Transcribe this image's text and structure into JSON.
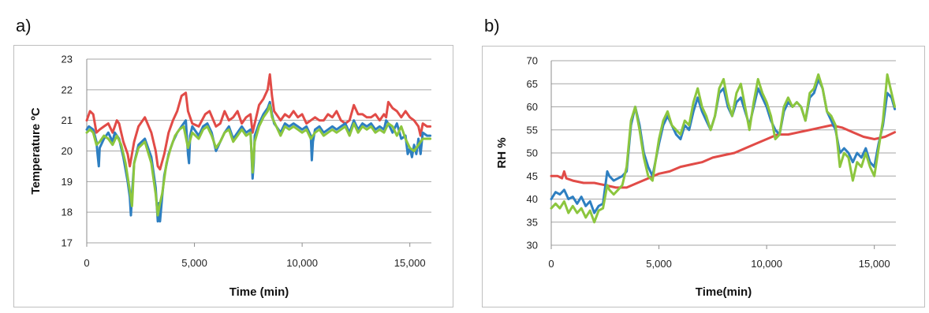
{
  "panels": {
    "a": {
      "letter": "a)"
    },
    "b": {
      "letter": "b)"
    }
  },
  "colors": {
    "blue": "#2e7fc1",
    "green": "#8cc63e",
    "red": "#e14b47",
    "grid": "#a6a6a6",
    "axis": "#8c8c8c"
  },
  "chart_data": [
    {
      "type": "line",
      "panel": "a",
      "xlabel": "Time (min)",
      "ylabel": "Temperature ºC",
      "xlim": [
        0,
        16000
      ],
      "ylim": [
        17,
        23
      ],
      "xticks": [
        0,
        5000,
        10000,
        15000
      ],
      "xtick_labels": [
        "0",
        "5,000",
        "10,000",
        "15,000"
      ],
      "yticks": [
        17,
        18,
        19,
        20,
        21,
        22,
        23
      ],
      "ytick_labels": [
        "17",
        "18",
        "19",
        "20",
        "21",
        "22",
        "23"
      ],
      "grid": "horizontal",
      "series": [
        {
          "color": "#e14b47",
          "x": [
            0,
            150,
            300,
            450,
            600,
            800,
            1000,
            1200,
            1400,
            1500,
            1700,
            1900,
            2000,
            2200,
            2400,
            2700,
            3000,
            3200,
            3300,
            3400,
            3600,
            3800,
            4000,
            4200,
            4400,
            4600,
            4700,
            4900,
            5200,
            5500,
            5700,
            6000,
            6200,
            6400,
            6600,
            6800,
            7000,
            7200,
            7400,
            7600,
            7700,
            7800,
            8000,
            8200,
            8400,
            8500,
            8600,
            8700,
            8800,
            9000,
            9200,
            9400,
            9600,
            9800,
            10000,
            10200,
            10400,
            10600,
            10800,
            11000,
            11200,
            11400,
            11600,
            11800,
            12000,
            12200,
            12400,
            12600,
            12800,
            13000,
            13200,
            13400,
            13600,
            13800,
            13900,
            14000,
            14200,
            14400,
            14600,
            14800,
            15000,
            15200,
            15400,
            15500,
            15600,
            15800,
            15950
          ],
          "y": [
            21.0,
            21.3,
            21.2,
            20.6,
            20.7,
            20.8,
            20.9,
            20.6,
            21.0,
            20.9,
            20.3,
            19.9,
            19.5,
            20.3,
            20.8,
            21.1,
            20.6,
            20.0,
            19.5,
            19.4,
            19.9,
            20.6,
            21.0,
            21.3,
            21.8,
            21.9,
            21.3,
            20.9,
            20.8,
            21.2,
            21.3,
            20.8,
            20.9,
            21.3,
            21.0,
            21.1,
            21.3,
            20.9,
            21.1,
            21.2,
            20.6,
            20.9,
            21.5,
            21.7,
            22.0,
            22.5,
            21.8,
            21.3,
            21.2,
            21.0,
            21.2,
            21.1,
            21.3,
            21.1,
            21.2,
            20.9,
            21.0,
            21.1,
            21.0,
            21.0,
            21.2,
            21.1,
            21.3,
            21.0,
            20.9,
            21.0,
            21.5,
            21.2,
            21.2,
            21.1,
            21.1,
            21.2,
            21.0,
            21.2,
            21.1,
            21.6,
            21.4,
            21.3,
            21.1,
            21.3,
            21.1,
            21.0,
            20.8,
            20.5,
            20.9,
            20.8,
            20.8
          ]
        },
        {
          "color": "#2e7fc1",
          "x": [
            0,
            100,
            300,
            450,
            500,
            560,
            600,
            800,
            1000,
            1200,
            1300,
            1500,
            1700,
            1900,
            2000,
            2050,
            2100,
            2200,
            2400,
            2700,
            3000,
            3200,
            3300,
            3350,
            3400,
            3500,
            3600,
            3800,
            4000,
            4200,
            4400,
            4600,
            4700,
            4750,
            4800,
            4900,
            5200,
            5400,
            5600,
            5800,
            6000,
            6200,
            6400,
            6600,
            6800,
            7000,
            7200,
            7400,
            7600,
            7700,
            7750,
            7800,
            8000,
            8200,
            8400,
            8500,
            8600,
            8700,
            8800,
            9000,
            9200,
            9400,
            9600,
            9800,
            10000,
            10200,
            10400,
            10450,
            10500,
            10600,
            10800,
            11000,
            11200,
            11400,
            11600,
            11800,
            12000,
            12200,
            12400,
            12600,
            12800,
            13000,
            13200,
            13400,
            13600,
            13800,
            13900,
            14000,
            14200,
            14400,
            14600,
            14800,
            14900,
            15000,
            15100,
            15200,
            15300,
            15400,
            15500,
            15600,
            15800,
            15950
          ],
          "y": [
            20.7,
            20.8,
            20.7,
            20.3,
            19.9,
            19.5,
            20.1,
            20.4,
            20.6,
            20.3,
            20.6,
            20.4,
            19.8,
            19.0,
            18.5,
            17.9,
            18.6,
            19.6,
            20.2,
            20.4,
            19.8,
            18.8,
            17.7,
            18.3,
            17.7,
            18.5,
            19.2,
            19.9,
            20.3,
            20.6,
            20.8,
            21.0,
            19.9,
            19.6,
            20.5,
            20.8,
            20.5,
            20.8,
            20.9,
            20.6,
            20.0,
            20.3,
            20.6,
            20.8,
            20.4,
            20.6,
            20.8,
            20.6,
            20.7,
            19.1,
            19.6,
            20.5,
            20.9,
            21.2,
            21.4,
            21.6,
            21.2,
            20.9,
            20.8,
            20.6,
            20.9,
            20.8,
            20.9,
            20.8,
            20.7,
            20.8,
            20.5,
            19.7,
            20.3,
            20.7,
            20.8,
            20.6,
            20.7,
            20.8,
            20.7,
            20.8,
            20.9,
            20.6,
            21.0,
            20.7,
            20.9,
            20.8,
            20.9,
            20.7,
            20.8,
            20.7,
            21.0,
            20.9,
            20.6,
            20.9,
            20.4,
            20.5,
            19.9,
            20.1,
            19.8,
            20.2,
            19.9,
            20.4,
            19.9,
            20.6,
            20.5,
            20.5
          ]
        },
        {
          "color": "#8cc63e",
          "x": [
            0,
            150,
            300,
            450,
            600,
            800,
            1000,
            1200,
            1400,
            1600,
            1800,
            2000,
            2100,
            2200,
            2400,
            2700,
            3000,
            3200,
            3300,
            3400,
            3500,
            3700,
            3900,
            4100,
            4300,
            4500,
            4700,
            4900,
            5200,
            5400,
            5600,
            5800,
            6000,
            6200,
            6400,
            6600,
            6800,
            7000,
            7200,
            7400,
            7600,
            7700,
            7800,
            8000,
            8200,
            8400,
            8500,
            8600,
            8800,
            9000,
            9200,
            9400,
            9600,
            9800,
            10000,
            10200,
            10400,
            10600,
            10800,
            11000,
            11200,
            11400,
            11600,
            11800,
            12000,
            12200,
            12400,
            12600,
            12800,
            13000,
            13200,
            13400,
            13600,
            13800,
            14000,
            14200,
            14400,
            14600,
            14800,
            15000,
            15200,
            15400,
            15600,
            15800,
            15950
          ],
          "y": [
            20.6,
            20.7,
            20.6,
            20.2,
            20.3,
            20.5,
            20.4,
            20.2,
            20.5,
            20.2,
            19.6,
            18.7,
            18.2,
            19.6,
            20.1,
            20.3,
            19.6,
            18.6,
            17.9,
            18.3,
            18.6,
            19.6,
            20.1,
            20.5,
            20.7,
            20.8,
            20.1,
            20.6,
            20.4,
            20.7,
            20.8,
            20.5,
            20.1,
            20.3,
            20.6,
            20.7,
            20.3,
            20.5,
            20.7,
            20.5,
            20.6,
            19.3,
            20.3,
            20.8,
            21.1,
            21.3,
            21.5,
            21.1,
            20.8,
            20.5,
            20.8,
            20.7,
            20.8,
            20.7,
            20.6,
            20.7,
            20.4,
            20.6,
            20.7,
            20.5,
            20.6,
            20.7,
            20.6,
            20.7,
            20.8,
            20.5,
            20.9,
            20.6,
            20.8,
            20.7,
            20.8,
            20.6,
            20.7,
            20.6,
            20.9,
            20.8,
            20.5,
            20.8,
            20.4,
            20.1,
            20.0,
            20.2,
            20.4,
            20.4,
            20.4
          ]
        }
      ]
    },
    {
      "type": "line",
      "panel": "b",
      "xlabel": "Time(min)",
      "ylabel": "RH %",
      "xlim": [
        0,
        16000
      ],
      "ylim": [
        30,
        70
      ],
      "xticks": [
        0,
        5000,
        10000,
        15000
      ],
      "xtick_labels": [
        "0",
        "5,000",
        "10,000",
        "15,000"
      ],
      "yticks": [
        30,
        35,
        40,
        45,
        50,
        55,
        60,
        65,
        70
      ],
      "ytick_labels": [
        "30",
        "35",
        "40",
        "45",
        "50",
        "55",
        "60",
        "65",
        "70"
      ],
      "grid": "horizontal",
      "series": [
        {
          "color": "#e14b47",
          "x": [
            0,
            300,
            500,
            600,
            700,
            1000,
            1500,
            2000,
            2500,
            3000,
            3500,
            4000,
            4500,
            5000,
            5500,
            6000,
            6500,
            7000,
            7500,
            8000,
            8500,
            9000,
            9500,
            10000,
            10500,
            11000,
            11500,
            12000,
            12500,
            13000,
            13500,
            14000,
            14500,
            15000,
            15500,
            15950
          ],
          "y": [
            45,
            45,
            44.5,
            46,
            44.5,
            44,
            43.5,
            43.5,
            43,
            42.5,
            42.5,
            43.5,
            44.5,
            45.5,
            46,
            47,
            47.5,
            48,
            49,
            49.5,
            50,
            51,
            52,
            53,
            54,
            54,
            54.5,
            55,
            55.5,
            56,
            55.5,
            54.5,
            53.5,
            53,
            53.5,
            54.5
          ]
        },
        {
          "color": "#2e7fc1",
          "x": [
            0,
            200,
            400,
            600,
            800,
            1000,
            1200,
            1400,
            1600,
            1800,
            2000,
            2200,
            2400,
            2600,
            2700,
            2900,
            3100,
            3300,
            3500,
            3700,
            3900,
            4100,
            4300,
            4500,
            4700,
            5000,
            5200,
            5400,
            5600,
            5800,
            6000,
            6200,
            6400,
            6600,
            6800,
            7000,
            7200,
            7400,
            7600,
            7800,
            8000,
            8200,
            8400,
            8600,
            8800,
            9000,
            9200,
            9400,
            9600,
            9800,
            10000,
            10200,
            10400,
            10600,
            10800,
            11000,
            11200,
            11400,
            11600,
            11800,
            12000,
            12200,
            12400,
            12600,
            12800,
            13000,
            13200,
            13400,
            13600,
            13800,
            14000,
            14200,
            14400,
            14600,
            14800,
            15000,
            15200,
            15400,
            15600,
            15800,
            15950
          ],
          "y": [
            40,
            41.5,
            41,
            42,
            40,
            40.5,
            39,
            40.5,
            38.5,
            39.5,
            37,
            38.5,
            39,
            46,
            45,
            44,
            44.5,
            45,
            46,
            56,
            60,
            56,
            50,
            47,
            45,
            52,
            56,
            58,
            56,
            54,
            53,
            56,
            55,
            59,
            62,
            59,
            57,
            55,
            58,
            63,
            64,
            60,
            58,
            61,
            62,
            59,
            56,
            60,
            64,
            62,
            60,
            57,
            55,
            54,
            59,
            61,
            60,
            61,
            60,
            57,
            62,
            63,
            66,
            64,
            59,
            57,
            55,
            50,
            51,
            50,
            48,
            50,
            49,
            51,
            48,
            47,
            52,
            56,
            63,
            62,
            59.5
          ]
        },
        {
          "color": "#8cc63e",
          "x": [
            0,
            200,
            400,
            600,
            800,
            1000,
            1200,
            1400,
            1600,
            1800,
            2000,
            2200,
            2400,
            2600,
            2700,
            2900,
            3100,
            3300,
            3500,
            3700,
            3900,
            4100,
            4300,
            4500,
            4700,
            5000,
            5200,
            5400,
            5600,
            5800,
            6000,
            6200,
            6400,
            6600,
            6800,
            7000,
            7200,
            7400,
            7600,
            7800,
            8000,
            8200,
            8400,
            8600,
            8800,
            9000,
            9200,
            9400,
            9600,
            9800,
            10000,
            10200,
            10400,
            10600,
            10800,
            11000,
            11200,
            11400,
            11600,
            11800,
            12000,
            12200,
            12400,
            12600,
            12800,
            13000,
            13200,
            13400,
            13600,
            13800,
            14000,
            14200,
            14400,
            14600,
            14800,
            15000,
            15200,
            15400,
            15600,
            15800,
            15950
          ],
          "y": [
            38,
            39,
            38,
            39.5,
            37,
            38.5,
            37,
            38,
            36,
            37.5,
            35,
            37.5,
            38,
            43,
            42,
            41,
            42,
            43,
            47,
            57,
            60,
            55,
            49,
            45,
            44,
            53,
            57,
            59,
            56,
            55,
            54,
            57,
            56,
            61,
            64,
            60,
            58,
            55,
            58,
            64,
            66,
            61,
            58,
            63,
            65,
            60,
            55,
            61,
            66,
            63,
            61,
            58,
            53,
            54,
            60,
            62,
            60,
            61,
            60,
            57,
            63,
            64,
            67,
            64,
            59,
            58,
            56,
            47,
            50,
            49,
            44,
            48,
            47,
            50,
            47,
            45,
            51,
            57,
            67,
            63,
            60
          ]
        }
      ]
    }
  ]
}
